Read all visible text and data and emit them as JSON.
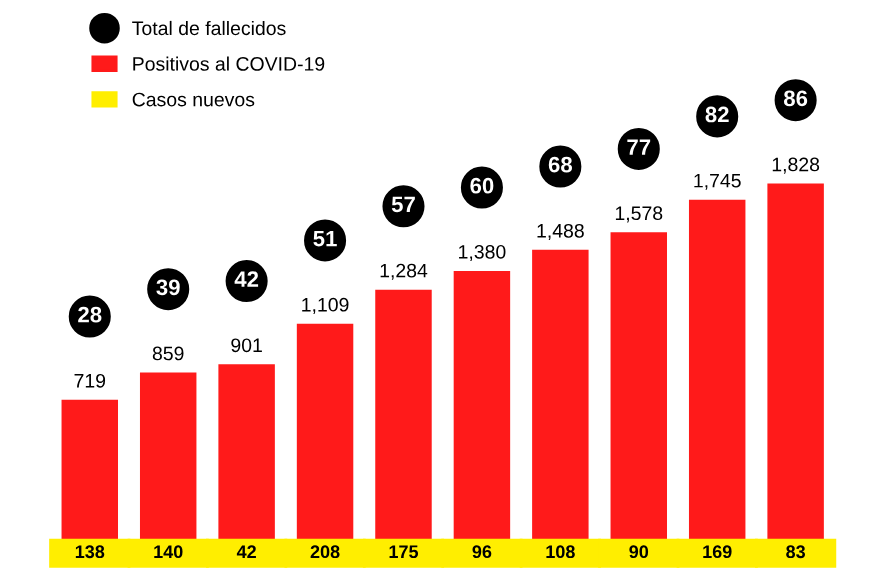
{
  "chart_data": {
    "type": "bar",
    "categories": [
      null,
      null,
      null,
      null,
      null,
      null,
      null,
      null,
      null,
      null
    ],
    "tick_labels": false,
    "grid": false,
    "legend": "top left",
    "series": [
      {
        "name": "Positivos al COVID-19",
        "color": "#ff1a1a",
        "values": [
          719,
          859,
          901,
          1109,
          1284,
          1380,
          1488,
          1578,
          1745,
          1828
        ],
        "value_labels": [
          "719",
          "859",
          "901",
          "1,109",
          "1,284",
          "1,380",
          "1,488",
          "1,578",
          "1,745",
          "1,828"
        ]
      }
    ],
    "annotations": [
      "Total de fallecidos",
      "28",
      "39",
      "42",
      "51",
      "57",
      "60",
      "68",
      "77",
      "82",
      "86",
      "Casos nuevos",
      "138",
      "140",
      "42",
      "208",
      "175",
      "96",
      "108",
      "90",
      "169",
      "83"
    ]
  }
}
